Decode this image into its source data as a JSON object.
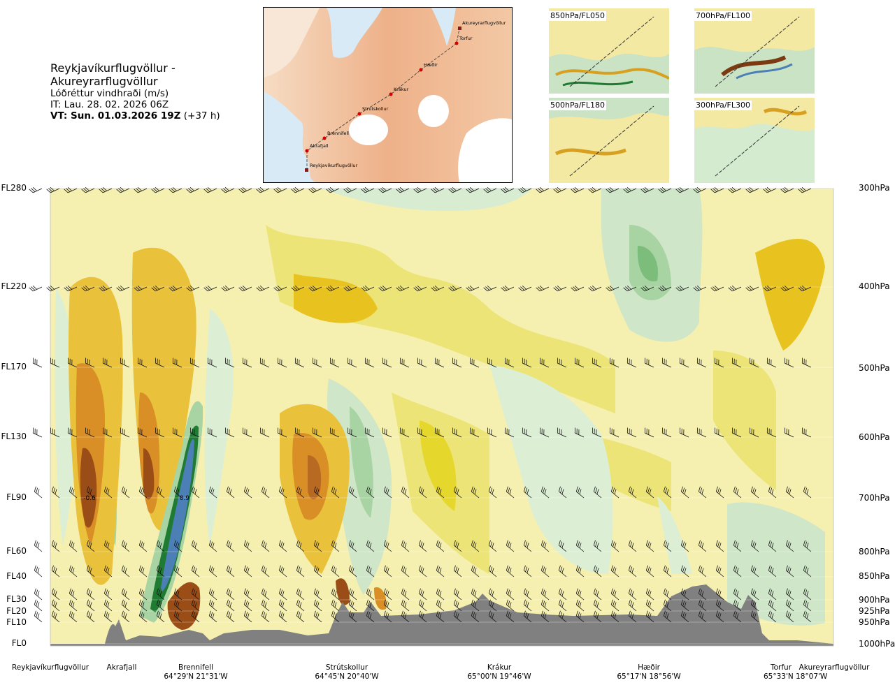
{
  "header": {
    "route": "Reykjavíkurflugvöllur - Akureyrarflugvöllur",
    "variable": "Lóðréttur vindhraði (m/s)",
    "issue_time": "IT: Lau. 28. 02. 2026 06Z",
    "valid_time_bold": "VT: Sun. 01.03.2026 19Z",
    "valid_offset": "(+37 h)"
  },
  "route_map": {
    "waypoints": [
      "Akureyrarflugvöllur",
      "Torfur",
      "Hæðir",
      "Krákur",
      "Strútskollur",
      "Brennifell",
      "Akrafjall",
      "Reykjavíkurflugvöllur"
    ]
  },
  "mini_maps": [
    {
      "label": "850hPa/FL050"
    },
    {
      "label": "700hPa/FL100"
    },
    {
      "label": "500hPa/FL180"
    },
    {
      "label": "300hPa/FL300"
    }
  ],
  "chart_data": {
    "type": "heatmap",
    "description_color_scale": {
      "negative": "#b5773a",
      "strong_negative": "#7b3a12",
      "positive": "#9ecf9c",
      "strong_positive": "#1f7a32",
      "max_positive": "#4b7fb5",
      "neutral": "#f3ee9f"
    },
    "left_axis_labels": [
      "FL280",
      "FL220",
      "FL170",
      "FL130",
      "FL90",
      "FL60",
      "FL40",
      "FL30",
      "FL20",
      "FL10",
      "FL0"
    ],
    "right_axis_labels": [
      "300hPa",
      "400hPa",
      "500hPa",
      "600hPa",
      "700hPa",
      "800hPa",
      "850hPa",
      "900hPa",
      "925hPa",
      "950hPa",
      "1000hPa"
    ],
    "annotations": [
      "-0.6",
      "0.9"
    ],
    "locations": [
      {
        "name": "Reykjavíkurflugvöllur",
        "coord": ""
      },
      {
        "name": "Akrafjall",
        "coord": ""
      },
      {
        "name": "Brennifell",
        "coord": "64°29'N 21°31'W"
      },
      {
        "name": "Strútskollur",
        "coord": "64°45'N 20°40'W"
      },
      {
        "name": "Krákur",
        "coord": "65°00'N 19°46'W"
      },
      {
        "name": "Hæðir",
        "coord": "65°17'N 18°56'W"
      },
      {
        "name": "Torfur",
        "coord": "65°33'N 18°07'W"
      },
      {
        "name": "Akureyrarflugvöllur",
        "coord": ""
      }
    ]
  }
}
